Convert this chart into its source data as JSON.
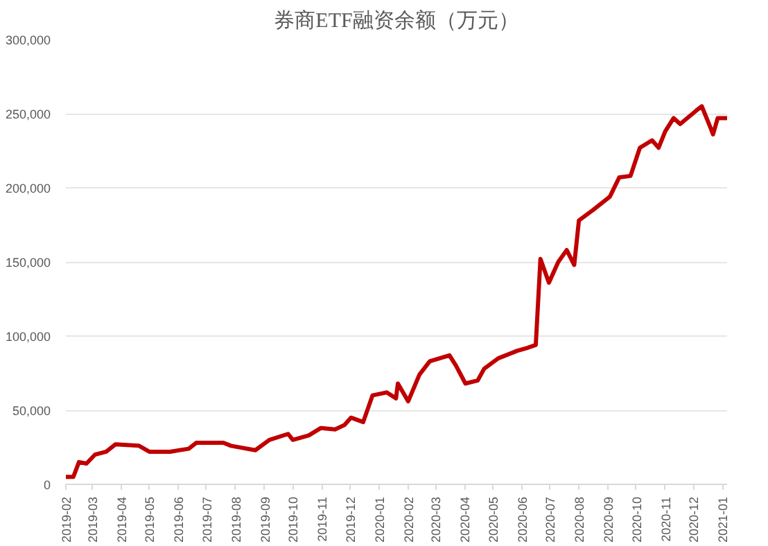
{
  "chart_data": {
    "type": "line",
    "title": "券商ETF融资余额（万元）",
    "x": [
      "2019-02-01",
      "2019-02-09",
      "2019-02-15",
      "2019-02-23",
      "2019-03-04",
      "2019-03-16",
      "2019-03-26",
      "2019-04-20",
      "2019-05-01",
      "2019-05-23",
      "2019-06-12",
      "2019-06-20",
      "2019-07-19",
      "2019-07-27",
      "2019-08-22",
      "2019-09-06",
      "2019-09-26",
      "2019-10-01",
      "2019-10-18",
      "2019-10-31",
      "2019-11-15",
      "2019-11-25",
      "2019-12-02",
      "2019-12-15",
      "2019-12-25",
      "2020-01-09",
      "2020-01-19",
      "2020-01-21",
      "2020-02-01",
      "2020-02-13",
      "2020-02-24",
      "2020-03-16",
      "2020-03-23",
      "2020-04-02",
      "2020-04-15",
      "2020-04-22",
      "2020-05-07",
      "2020-05-27",
      "2020-06-07",
      "2020-06-16",
      "2020-06-21",
      "2020-06-30",
      "2020-07-10",
      "2020-07-19",
      "2020-07-27",
      "2020-08-01",
      "2020-08-16",
      "2020-09-03",
      "2020-09-13",
      "2020-09-25",
      "2020-10-05",
      "2020-10-18",
      "2020-10-25",
      "2020-11-01",
      "2020-11-10",
      "2020-11-17",
      "2020-12-04",
      "2020-12-10",
      "2020-12-19",
      "2020-12-22",
      "2020-12-27",
      "2021-01-06"
    ],
    "series": [
      {
        "color": "#c00000",
        "values": [
          5000,
          5000,
          15000,
          14000,
          20000,
          22000,
          27000,
          26000,
          22000,
          22000,
          24000,
          28000,
          28000,
          26000,
          23000,
          30000,
          34000,
          30000,
          33000,
          38000,
          37000,
          40000,
          45000,
          42000,
          60000,
          62000,
          58000,
          68000,
          56000,
          74000,
          83000,
          87000,
          80000,
          68000,
          70000,
          78000,
          85000,
          90000,
          92000,
          94000,
          152000,
          136000,
          150000,
          158000,
          148000,
          178000,
          185000,
          194000,
          207000,
          208000,
          227000,
          232000,
          227000,
          238000,
          247000,
          243000,
          252000,
          255000,
          241000,
          236000,
          247000,
          247000
        ]
      }
    ],
    "xlim": [
      "2019-02-01",
      "2021-01-06"
    ],
    "xticks": [
      "2019-02",
      "2019-03",
      "2019-04",
      "2019-05",
      "2019-06",
      "2019-07",
      "2019-08",
      "2019-09",
      "2019-10",
      "2019-11",
      "2019-12",
      "2020-01",
      "2020-02",
      "2020-03",
      "2020-04",
      "2020-05",
      "2020-06",
      "2020-07",
      "2020-08",
      "2020-09",
      "2020-10",
      "2020-11",
      "2020-12",
      "2021-01"
    ],
    "ylim": [
      0,
      300000
    ],
    "yticks": [
      {
        "value": 0,
        "label": "0"
      },
      {
        "value": 50000,
        "label": "50,000"
      },
      {
        "value": 100000,
        "label": "100,000"
      },
      {
        "value": 150000,
        "label": "150,000"
      },
      {
        "value": 200000,
        "label": "200,000"
      },
      {
        "value": 250000,
        "label": "250,000"
      },
      {
        "value": 300000,
        "label": "300,000"
      }
    ],
    "grid": "y",
    "marker": "none",
    "line_style": "solid"
  }
}
